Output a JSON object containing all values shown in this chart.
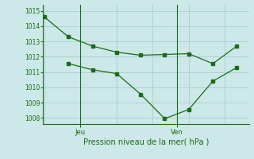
{
  "line1_x": [
    0,
    1,
    2,
    3,
    4,
    5,
    6,
    7,
    8
  ],
  "line1_y": [
    1014.6,
    1013.3,
    1012.7,
    1012.3,
    1012.1,
    1012.15,
    1012.2,
    1011.55,
    1012.7
  ],
  "line2_x": [
    1,
    2,
    3,
    4,
    5,
    6,
    7,
    8
  ],
  "line2_y": [
    1011.55,
    1011.15,
    1010.9,
    1009.55,
    1007.95,
    1008.55,
    1010.4,
    1011.3
  ],
  "line_color": "#1a6b1a",
  "bg_color": "#cce8e8",
  "grid_color": "#b0d0d0",
  "ylim_min": 1007.6,
  "ylim_max": 1015.4,
  "yticks": [
    1008,
    1009,
    1010,
    1011,
    1012,
    1013,
    1014,
    1015
  ],
  "xlabel": "Pression niveau de la mer( hPa )",
  "jeu_x": 1.5,
  "ven_x": 5.5,
  "xlim_min": -0.05,
  "xlim_max": 8.5,
  "tick_label_fontsize": 5.5,
  "xlabel_fontsize": 7.0,
  "marker_size": 2.5,
  "line_width": 0.9
}
